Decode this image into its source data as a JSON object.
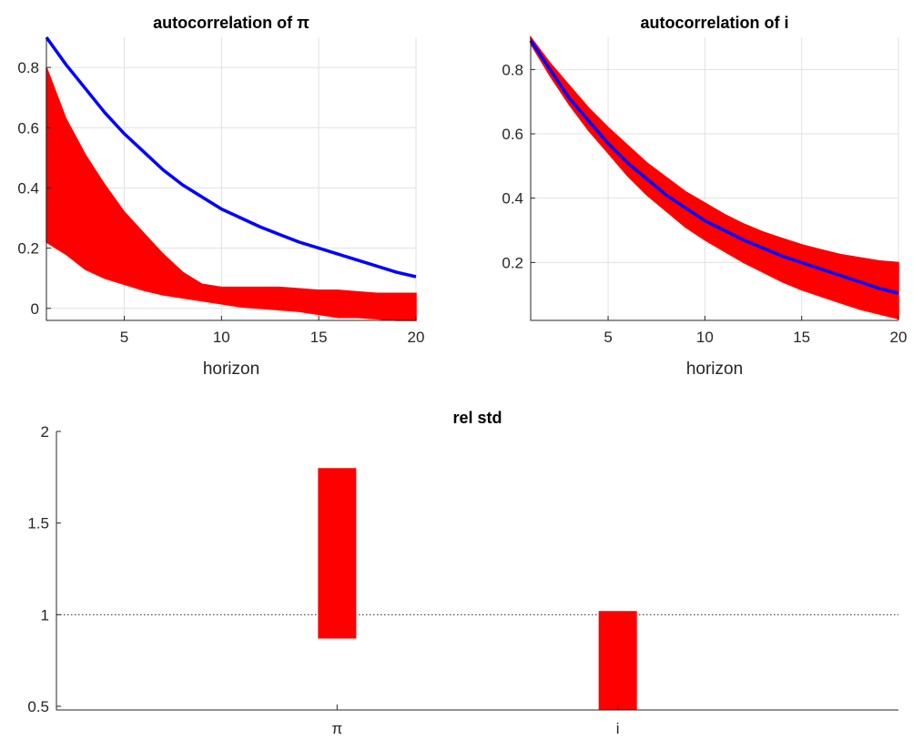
{
  "chart_data": [
    {
      "type": "area",
      "title": "autocorrelation of π",
      "xlabel": "horizon",
      "ylabel": "",
      "xlim": [
        1,
        20
      ],
      "ylim": [
        -0.04,
        0.9
      ],
      "xticks": [
        5,
        10,
        15,
        20
      ],
      "yticks": [
        0,
        0.2,
        0.4,
        0.6,
        0.8
      ],
      "grid": true,
      "series": [
        {
          "kind": "line",
          "color": "#0000ff",
          "x": [
            1,
            2,
            3,
            4,
            5,
            6,
            7,
            8,
            9,
            10,
            11,
            12,
            13,
            14,
            15,
            16,
            17,
            18,
            19,
            20
          ],
          "values": [
            0.9,
            0.81,
            0.73,
            0.65,
            0.58,
            0.52,
            0.46,
            0.41,
            0.37,
            0.33,
            0.3,
            0.27,
            0.245,
            0.22,
            0.2,
            0.18,
            0.16,
            0.14,
            0.12,
            0.105
          ]
        },
        {
          "kind": "band",
          "color": "#ff0000",
          "x": [
            1,
            2,
            3,
            4,
            5,
            6,
            7,
            8,
            9,
            10,
            11,
            12,
            13,
            14,
            15,
            16,
            17,
            18,
            19,
            20
          ],
          "lower": [
            0.22,
            0.18,
            0.13,
            0.1,
            0.08,
            0.06,
            0.045,
            0.035,
            0.025,
            0.015,
            0.005,
            0.0,
            -0.005,
            -0.01,
            -0.02,
            -0.03,
            -0.03,
            -0.035,
            -0.04,
            -0.04
          ],
          "upper": [
            0.8,
            0.63,
            0.51,
            0.41,
            0.32,
            0.25,
            0.18,
            0.12,
            0.08,
            0.07,
            0.07,
            0.07,
            0.07,
            0.065,
            0.06,
            0.06,
            0.055,
            0.05,
            0.05,
            0.05
          ]
        }
      ]
    },
    {
      "type": "area",
      "title": "autocorrelation of i",
      "xlabel": "horizon",
      "ylabel": "",
      "xlim": [
        1,
        20
      ],
      "ylim": [
        0.02,
        0.9
      ],
      "xticks": [
        5,
        10,
        15,
        20
      ],
      "yticks": [
        0.2,
        0.4,
        0.6,
        0.8
      ],
      "grid": true,
      "series": [
        {
          "kind": "band",
          "color": "#ff0000",
          "x": [
            1,
            2,
            3,
            4,
            5,
            6,
            7,
            8,
            9,
            10,
            11,
            12,
            13,
            14,
            15,
            16,
            17,
            18,
            19,
            20
          ],
          "lower": [
            0.88,
            0.78,
            0.69,
            0.61,
            0.54,
            0.47,
            0.41,
            0.36,
            0.31,
            0.27,
            0.235,
            0.2,
            0.17,
            0.14,
            0.115,
            0.095,
            0.075,
            0.055,
            0.04,
            0.025
          ],
          "upper": [
            0.9,
            0.82,
            0.75,
            0.68,
            0.62,
            0.565,
            0.51,
            0.465,
            0.42,
            0.385,
            0.35,
            0.32,
            0.295,
            0.275,
            0.255,
            0.24,
            0.225,
            0.215,
            0.205,
            0.2
          ]
        },
        {
          "kind": "line",
          "color": "#0000ff",
          "x": [
            1,
            2,
            3,
            4,
            5,
            6,
            7,
            8,
            9,
            10,
            11,
            12,
            13,
            14,
            15,
            16,
            17,
            18,
            19,
            20
          ],
          "values": [
            0.89,
            0.8,
            0.71,
            0.64,
            0.57,
            0.51,
            0.46,
            0.41,
            0.37,
            0.33,
            0.3,
            0.27,
            0.245,
            0.22,
            0.2,
            0.18,
            0.16,
            0.14,
            0.12,
            0.105
          ]
        }
      ]
    },
    {
      "type": "bar",
      "title": "rel std",
      "xlabel": "",
      "ylabel": "",
      "ylim": [
        0.48,
        2.0
      ],
      "yticks": [
        0.5,
        1,
        1.5,
        2
      ],
      "ytick_labels": [
        "0.5",
        "1",
        "1.5",
        "2"
      ],
      "categories": [
        "π",
        "i"
      ],
      "ranges": [
        [
          0.87,
          1.8
        ],
        [
          0.48,
          1.02
        ]
      ],
      "reference_line": 1,
      "grid": false,
      "bar_color": "#ff0000"
    }
  ]
}
